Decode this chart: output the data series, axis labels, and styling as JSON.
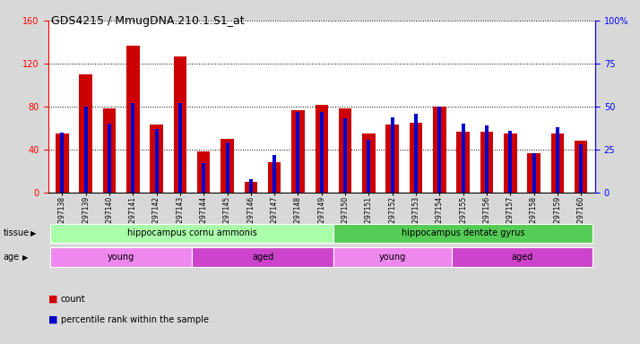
{
  "title": "GDS4215 / MmugDNA.210.1.S1_at",
  "samples": [
    "GSM297138",
    "GSM297139",
    "GSM297140",
    "GSM297141",
    "GSM297142",
    "GSM297143",
    "GSM297144",
    "GSM297145",
    "GSM297146",
    "GSM297147",
    "GSM297148",
    "GSM297149",
    "GSM297150",
    "GSM297151",
    "GSM297152",
    "GSM297153",
    "GSM297154",
    "GSM297155",
    "GSM297156",
    "GSM297157",
    "GSM297158",
    "GSM297159",
    "GSM297160"
  ],
  "count_values": [
    55,
    110,
    78,
    137,
    63,
    127,
    38,
    50,
    10,
    28,
    77,
    82,
    78,
    55,
    63,
    65,
    80,
    57,
    57,
    55,
    37,
    55,
    48
  ],
  "percentile_values": [
    35,
    50,
    40,
    52,
    37,
    52,
    17,
    29,
    8,
    22,
    47,
    47,
    43,
    31,
    44,
    46,
    50,
    40,
    39,
    36,
    23,
    38,
    28
  ],
  "bar_color": "#cc0000",
  "pct_color": "#0000cc",
  "left_ylim": [
    0,
    160
  ],
  "right_ylim": [
    0,
    100
  ],
  "left_yticks": [
    0,
    40,
    80,
    120,
    160
  ],
  "right_yticks": [
    0,
    25,
    50,
    75,
    100
  ],
  "right_ytick_labels": [
    "0",
    "25",
    "50",
    "75",
    "100%"
  ],
  "tissue_groups": [
    {
      "label": "hippocampus cornu ammonis",
      "start": 0,
      "end": 12,
      "color": "#aaffaa"
    },
    {
      "label": "hippocampus dentate gyrus",
      "start": 12,
      "end": 23,
      "color": "#55cc55"
    }
  ],
  "age_groups": [
    {
      "label": "young",
      "start": 0,
      "end": 6,
      "color": "#ee88ee"
    },
    {
      "label": "aged",
      "start": 6,
      "end": 12,
      "color": "#cc44cc"
    },
    {
      "label": "young",
      "start": 12,
      "end": 17,
      "color": "#ee88ee"
    },
    {
      "label": "aged",
      "start": 17,
      "end": 23,
      "color": "#cc44cc"
    }
  ],
  "tissue_label": "tissue",
  "age_label": "age",
  "legend_count_label": "count",
  "legend_pct_label": "percentile rank within the sample",
  "bg_color": "#d8d8d8",
  "plot_bg_color": "#ffffff"
}
